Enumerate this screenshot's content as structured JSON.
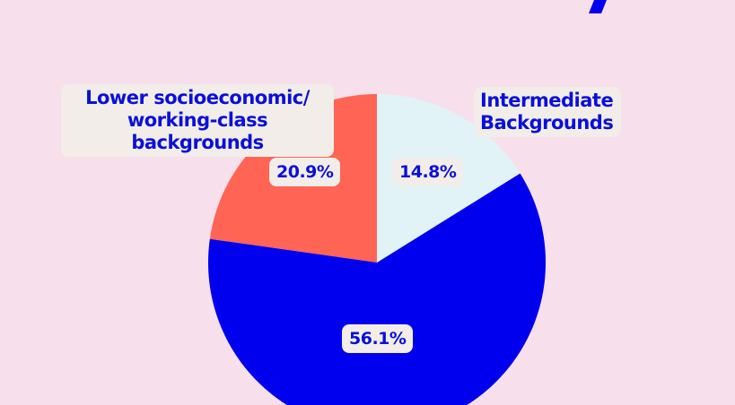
{
  "chart_data": {
    "type": "pie",
    "title": "",
    "slices": [
      {
        "label": "Intermediate Backgrounds",
        "value": 14.8,
        "value_label": "14.8%",
        "color": "#e1f3f7"
      },
      {
        "label": "",
        "value": 56.1,
        "value_label": "56.1%",
        "color": "#0000ee"
      },
      {
        "label": "Lower socioeconomic/ working-class backgrounds",
        "value": 20.9,
        "value_label": "20.9%",
        "color": "#ff6454"
      }
    ],
    "start_angle": "top",
    "direction": "clockwise"
  },
  "colors": {
    "background": "#f7dfeb",
    "text": "#0a10d8",
    "label_box": "#f2ede8"
  }
}
